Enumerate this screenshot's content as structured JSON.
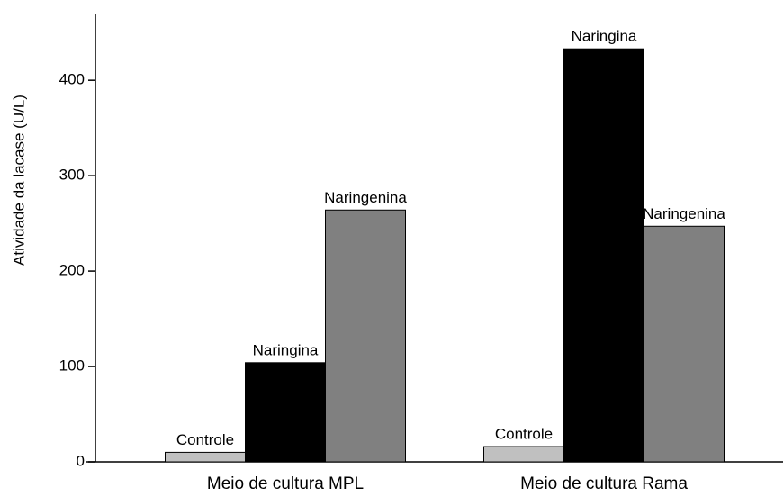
{
  "chart_data": {
    "type": "bar",
    "y_label": "Atividade da lacase (U/L)",
    "categories": [
      "Meio de cultura MPL",
      "Meio de cultura Rama"
    ],
    "series": [
      {
        "name": "Controle",
        "color": "#c0c0c0",
        "values": [
          10,
          16
        ]
      },
      {
        "name": "Naringina",
        "color": "#000000",
        "values": [
          104,
          433
        ]
      },
      {
        "name": "Naringenina",
        "color": "#808080",
        "values": [
          264,
          247
        ]
      }
    ],
    "ylim": [
      0,
      470
    ],
    "yticks": [
      0,
      100,
      200,
      300,
      400
    ],
    "grid": false
  }
}
